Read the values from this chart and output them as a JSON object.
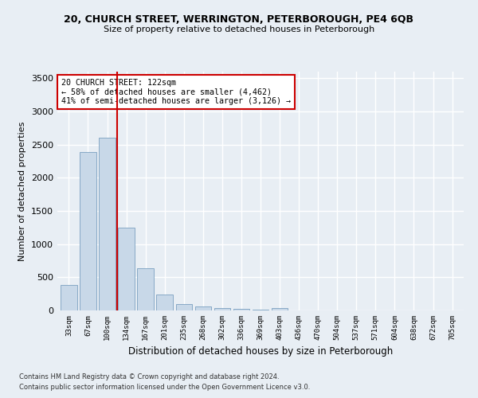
{
  "title1": "20, CHURCH STREET, WERRINGTON, PETERBOROUGH, PE4 6QB",
  "title2": "Size of property relative to detached houses in Peterborough",
  "xlabel": "Distribution of detached houses by size in Peterborough",
  "ylabel": "Number of detached properties",
  "footer1": "Contains HM Land Registry data © Crown copyright and database right 2024.",
  "footer2": "Contains public sector information licensed under the Open Government Licence v3.0.",
  "categories": [
    "33sqm",
    "67sqm",
    "100sqm",
    "134sqm",
    "167sqm",
    "201sqm",
    "235sqm",
    "268sqm",
    "302sqm",
    "336sqm",
    "369sqm",
    "403sqm",
    "436sqm",
    "470sqm",
    "504sqm",
    "537sqm",
    "571sqm",
    "604sqm",
    "638sqm",
    "672sqm",
    "705sqm"
  ],
  "values": [
    390,
    2390,
    2600,
    1250,
    640,
    245,
    100,
    55,
    35,
    20,
    10,
    35,
    0,
    0,
    0,
    0,
    0,
    0,
    0,
    0,
    0
  ],
  "bar_color": "#c8d8e8",
  "bar_edge_color": "#7aa0c0",
  "background_color": "#e8eef4",
  "grid_color": "#ffffff",
  "vline_x": 2.5,
  "vline_color": "#cc0000",
  "ylim": [
    0,
    3600
  ],
  "yticks": [
    0,
    500,
    1000,
    1500,
    2000,
    2500,
    3000,
    3500
  ],
  "annotation_line1": "20 CHURCH STREET: 122sqm",
  "annotation_line2": "← 58% of detached houses are smaller (4,462)",
  "annotation_line3": "41% of semi-detached houses are larger (3,126) →",
  "annotation_box_color": "#cc0000",
  "annotation_box_bg": "#ffffff",
  "title1_fontsize": 9,
  "title2_fontsize": 8
}
